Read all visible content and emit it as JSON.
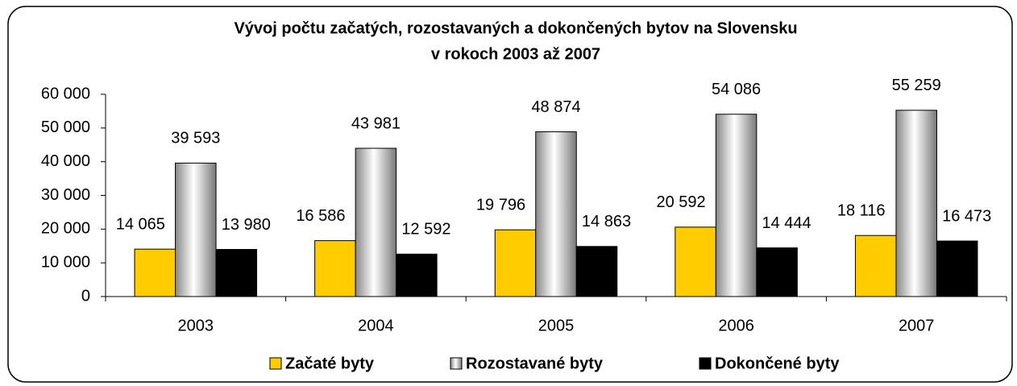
{
  "chart_data": {
    "type": "bar",
    "title": "Vývoj počtu začatých, rozostavaných a dokončených bytov na Slovensku",
    "subtitle": "v rokoch 2003 až 2007",
    "categories": [
      "2003",
      "2004",
      "2005",
      "2006",
      "2007"
    ],
    "series": [
      {
        "name": "Začaté byty",
        "color": "#FFCC00",
        "values": [
          14065,
          16586,
          19796,
          20592,
          18116
        ],
        "value_labels": [
          "14 065",
          "16 586",
          "19 796",
          "20 592",
          "18 116"
        ]
      },
      {
        "name": "Rozostavané byty",
        "color": "#C0C0C0",
        "values": [
          39593,
          43981,
          48874,
          54086,
          55259
        ],
        "value_labels": [
          "39 593",
          "43 981",
          "48 874",
          "54 086",
          "55 259"
        ]
      },
      {
        "name": "Dokončené byty",
        "color": "#000000",
        "values": [
          13980,
          12592,
          14863,
          14444,
          16473
        ],
        "value_labels": [
          "13 980",
          "12 592",
          "14 863",
          "14 444",
          "16 473"
        ]
      }
    ],
    "ylim": [
      0,
      60000
    ],
    "yticks": [
      0,
      {
        "value": 10000,
        "label": "10 000"
      },
      {
        "value": 20000,
        "label": "20 000"
      },
      {
        "value": 30000,
        "label": "30 000"
      },
      {
        "value": 40000,
        "label": "40 000"
      },
      {
        "value": 50000,
        "label": "50 000"
      },
      {
        "value": 60000,
        "label": "60 000"
      }
    ],
    "legend": "bottom"
  }
}
